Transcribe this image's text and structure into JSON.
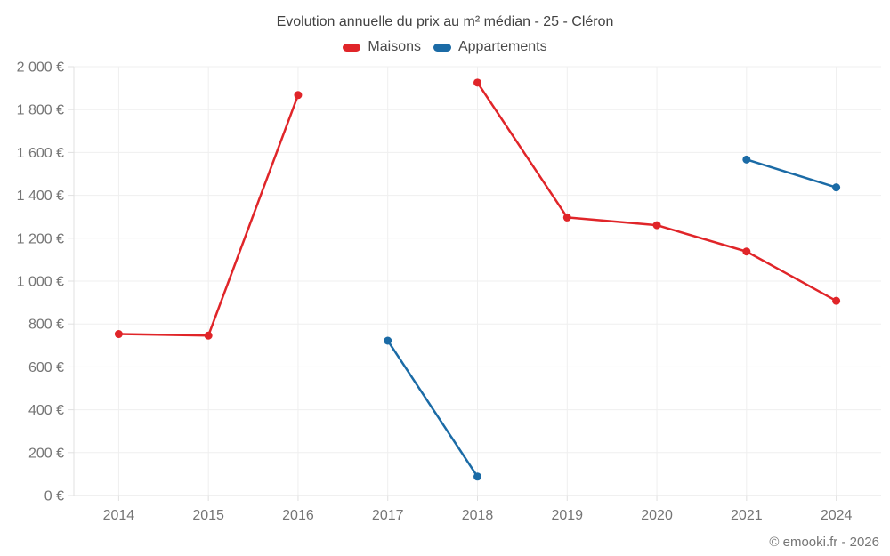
{
  "page": {
    "footer": "© emooki.fr - 2026"
  },
  "legend": {
    "items": [
      {
        "label": "Maisons"
      },
      {
        "label": "Appartements"
      }
    ]
  },
  "chart_data": {
    "type": "line",
    "title": "Evolution annuelle du prix au m² médian - 25 - Cléron",
    "xlabel": "",
    "ylabel": "",
    "categories": [
      "2014",
      "2015",
      "2016",
      "2017",
      "2018",
      "2019",
      "2020",
      "2021",
      "2024"
    ],
    "series": [
      {
        "name": "Maisons",
        "color": "#e02529",
        "values": [
          753,
          746,
          1868,
          null,
          1926,
          1297,
          1261,
          1138,
          908
        ]
      },
      {
        "name": "Appartements",
        "color": "#1b6ba6",
        "values": [
          null,
          null,
          null,
          722,
          88,
          null,
          null,
          1567,
          1437
        ]
      }
    ],
    "ylim": [
      0,
      2000
    ],
    "y_tick_step": 200,
    "y_tick_labels": [
      "0 €",
      "200 €",
      "400 €",
      "600 €",
      "800 €",
      "1 000 €",
      "1 200 €",
      "1 400 €",
      "1 600 €",
      "1 800 €",
      "2 000 €"
    ],
    "grid": true,
    "legend_position": "top",
    "colors": {
      "gridline": "#efefef",
      "axis": "#e0e0e0",
      "tick_label": "#757575",
      "title": "#424242"
    }
  }
}
